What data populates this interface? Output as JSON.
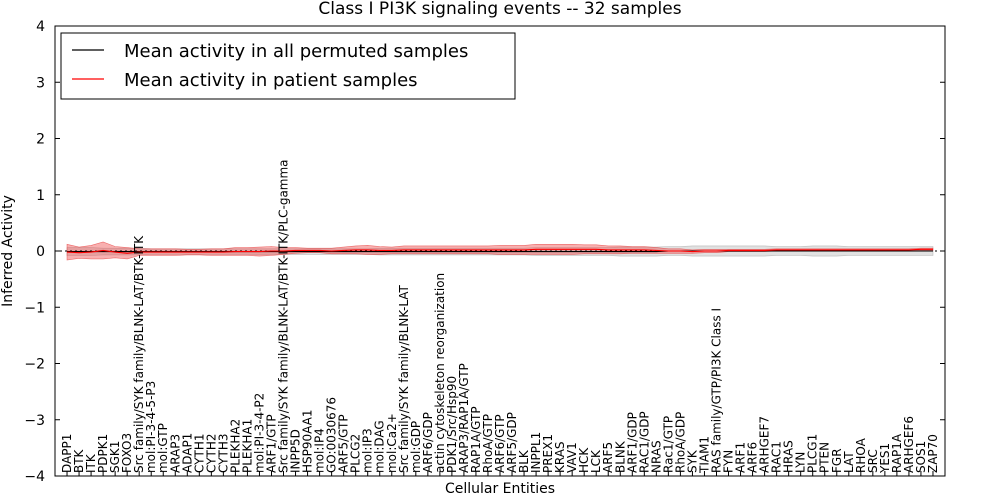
{
  "chart_data": {
    "type": "line",
    "title": "Class I PI3K signaling events -- 32 samples",
    "xlabel": "Cellular Entities",
    "ylabel": "Inferred Activity",
    "ylim": [
      -4,
      4
    ],
    "yticks": [
      4,
      3,
      2,
      1,
      0,
      -1,
      -2,
      -3,
      -4
    ],
    "ytick_labels": [
      "4",
      "3",
      "2",
      "1",
      "0",
      "−1",
      "−2",
      "−3",
      "−4"
    ],
    "legend_position": "top-left",
    "categories": [
      "DAPP1",
      "BTK",
      "ITK",
      "PDPK1",
      "SGK1",
      "FOXO3",
      "Src family/SYK family/BLNK-LAT/BTK-ITK",
      "mol:PI-3-4-5-P3",
      "mol:GTP",
      "ARAP3",
      "ADAP1",
      "CYTH1",
      "CYTH2",
      "CYTH3",
      "PLEKHA2",
      "PLEKHA1",
      "mol:PI-3-4-P2",
      "ARF1/GTP",
      "Src family/SYK family/BLNK-LAT/BTK-ITK/PLC-gamma",
      "INPP5D",
      "HSP90AA1",
      "mol:IP4",
      "GO:0030676",
      "ARF5/GTP",
      "PLCG2",
      "mol:IP3",
      "mol:DAG",
      "mol:Ca2+",
      "Src family/SYK family/BLNK-LAT",
      "mol:GDP",
      "ARF6/GDP",
      "actin cytoskeleton reorganization",
      "PDK1/Src/Hsp90",
      "ARAP3/RAP1A/GTP",
      "RAP1A/GTP",
      "RhoA/GTP",
      "ARF6/GTP",
      "ARF5/GDP",
      "BLK",
      "INPPL1",
      "PREX1",
      "KRAS",
      "VAV1",
      "HCK",
      "LCK",
      "ARF5",
      "BLNK",
      "ARF1/GDP",
      "RAC1/GDP",
      "NRAS",
      "Rac1/GTP",
      "RhoA/GDP",
      "SYK",
      "TIAM1",
      "RAS family/GTP/PI3K Class I",
      "FYN",
      "ARF1",
      "ARF6",
      "ARHGEF7",
      "RAC1",
      "HRAS",
      "LYN",
      "PLCG1",
      "PTEN",
      "FGR",
      "LAT",
      "RHOA",
      "SRC",
      "YES1",
      "RAP1A",
      "ARHGEF6",
      "SOS1",
      "ZAP70"
    ],
    "series": [
      {
        "name": "Mean activity in all permuted samples",
        "color": "#000000",
        "values": [
          -0.01,
          -0.01,
          -0.01,
          -0.01,
          -0.01,
          -0.01,
          -0.01,
          -0.01,
          -0.01,
          -0.01,
          -0.01,
          -0.01,
          -0.01,
          -0.01,
          -0.01,
          -0.01,
          -0.01,
          -0.01,
          -0.01,
          -0.01,
          -0.01,
          -0.01,
          -0.01,
          -0.01,
          -0.01,
          -0.01,
          -0.01,
          -0.01,
          -0.01,
          -0.01,
          -0.01,
          -0.01,
          -0.01,
          -0.01,
          -0.01,
          -0.01,
          -0.01,
          -0.01,
          -0.01,
          -0.01,
          -0.01,
          -0.01,
          -0.01,
          -0.01,
          -0.01,
          -0.01,
          -0.01,
          -0.01,
          -0.01,
          -0.01,
          0,
          0,
          0,
          0,
          0,
          0,
          0,
          0,
          0,
          0,
          0,
          0,
          0,
          0,
          0,
          0,
          0,
          0,
          0,
          0,
          0,
          0,
          0
        ],
        "spread": [
          0.07,
          0.07,
          0.07,
          0.06,
          0.06,
          0.06,
          0.06,
          0.05,
          0.05,
          0.05,
          0.05,
          0.05,
          0.05,
          0.05,
          0.05,
          0.05,
          0.05,
          0.05,
          0.05,
          0.05,
          0.05,
          0.05,
          0.05,
          0.05,
          0.05,
          0.05,
          0.06,
          0.06,
          0.06,
          0.06,
          0.06,
          0.06,
          0.06,
          0.06,
          0.06,
          0.06,
          0.06,
          0.06,
          0.06,
          0.07,
          0.07,
          0.07,
          0.07,
          0.07,
          0.07,
          0.07,
          0.08,
          0.08,
          0.08,
          0.08,
          0.08,
          0.08,
          0.09,
          0.09,
          0.09,
          0.09,
          0.09,
          0.09,
          0.09,
          0.08,
          0.08,
          0.08,
          0.09,
          0.09,
          0.09,
          0.08,
          0.08,
          0.08,
          0.08,
          0.08,
          0.08,
          0.08,
          0.08
        ]
      },
      {
        "name": "Mean activity in patient samples",
        "color": "#ff0000",
        "values": [
          -0.02,
          -0.03,
          -0.02,
          0.01,
          -0.02,
          -0.04,
          -0.02,
          -0.02,
          -0.02,
          -0.02,
          -0.02,
          -0.02,
          -0.02,
          -0.02,
          -0.01,
          -0.01,
          -0.01,
          0,
          0,
          0.01,
          0.01,
          0.01,
          0,
          0.01,
          0.02,
          0.02,
          0.01,
          0.01,
          0.02,
          0.02,
          0.02,
          0.02,
          0.02,
          0.02,
          0.02,
          0.02,
          0.02,
          0.02,
          0.02,
          0.03,
          0.03,
          0.03,
          0.03,
          0.03,
          0.03,
          0.02,
          0.02,
          0.02,
          0.02,
          0.01,
          0,
          0,
          -0.01,
          0,
          0,
          0.01,
          0.01,
          0.01,
          0.01,
          0.02,
          0.02,
          0.02,
          0.02,
          0.02,
          0.02,
          0.02,
          0.02,
          0.02,
          0.02,
          0.02,
          0.02,
          0.03,
          0.03
        ],
        "spread": [
          0.14,
          0.1,
          0.12,
          0.15,
          0.1,
          0.1,
          0.06,
          0.06,
          0.06,
          0.06,
          0.05,
          0.05,
          0.06,
          0.06,
          0.07,
          0.07,
          0.08,
          0.08,
          0.06,
          0.05,
          0.04,
          0.04,
          0.05,
          0.06,
          0.07,
          0.08,
          0.07,
          0.06,
          0.07,
          0.07,
          0.07,
          0.07,
          0.07,
          0.07,
          0.07,
          0.07,
          0.08,
          0.08,
          0.08,
          0.09,
          0.09,
          0.09,
          0.09,
          0.08,
          0.08,
          0.07,
          0.07,
          0.06,
          0.06,
          0.05,
          0.04,
          0.04,
          0.03,
          0.03,
          0.03,
          0.02,
          0.02,
          0.02,
          0.02,
          0.02,
          0.02,
          0.02,
          0.02,
          0.02,
          0.02,
          0.02,
          0.02,
          0.02,
          0.02,
          0.02,
          0.02,
          0.02,
          0.02
        ]
      }
    ]
  }
}
